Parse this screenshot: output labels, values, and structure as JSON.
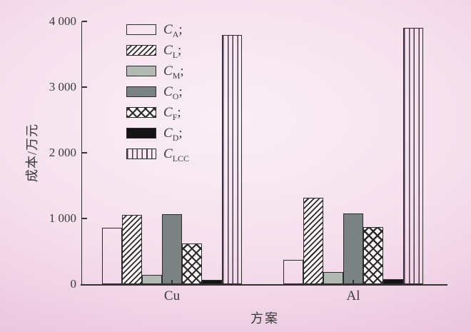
{
  "chart_data": {
    "type": "bar",
    "title": "",
    "xlabel": "方案",
    "ylabel": "成本/万元",
    "ylim": [
      0,
      4000
    ],
    "yticks": [
      0,
      1000,
      2000,
      3000,
      4000
    ],
    "ytick_labels": [
      "0",
      "1 000",
      "2 000",
      "3 000",
      "4 000"
    ],
    "categories": [
      "Cu",
      "Al"
    ],
    "series": [
      {
        "name": "C_A",
        "legend": {
          "main": "C",
          "sub": "A",
          "suffix": ";"
        },
        "pattern": "plain",
        "values": [
          860,
          370
        ]
      },
      {
        "name": "C_L",
        "legend": {
          "main": "C",
          "sub": "L",
          "suffix": ";"
        },
        "pattern": "diagonal-hatch",
        "values": [
          1050,
          1320
        ]
      },
      {
        "name": "C_M",
        "legend": {
          "main": "C",
          "sub": "M",
          "suffix": ";"
        },
        "pattern": "solid",
        "color": "#b3bab3",
        "values": [
          140,
          180
        ]
      },
      {
        "name": "C_O",
        "legend": {
          "main": "C",
          "sub": "O",
          "suffix": ";"
        },
        "pattern": "solid",
        "color": "#7b8382",
        "values": [
          1060,
          1080
        ]
      },
      {
        "name": "C_F",
        "legend": {
          "main": "C",
          "sub": "F",
          "suffix": ";"
        },
        "pattern": "crosshatch",
        "values": [
          620,
          870
        ]
      },
      {
        "name": "C_D",
        "legend": {
          "main": "C",
          "sub": "D",
          "suffix": ";"
        },
        "pattern": "solid",
        "color": "#141414",
        "values": [
          60,
          80
        ]
      },
      {
        "name": "C_LCC",
        "legend": {
          "main": "C",
          "sub": "LCC",
          "suffix": ""
        },
        "pattern": "vertical-lines",
        "values": [
          3790,
          3900
        ]
      }
    ],
    "legend_position": "top-left inside plot",
    "grid": false
  },
  "colors": {
    "background_edge": "#e9bedb",
    "background_center": "#f9eff5",
    "axis": "#333333",
    "text": "#3a3a3a",
    "bar_border": "#2b2b2b",
    "c_m_fill": "#b3bab3",
    "c_o_fill": "#7b8382",
    "c_d_fill": "#141414",
    "vline": "#46394b"
  }
}
